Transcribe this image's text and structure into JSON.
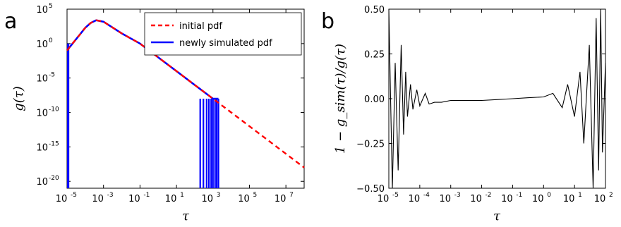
{
  "chart_data": [
    {
      "panel": "a",
      "type": "line",
      "xlabel": "τ",
      "ylabel": "g(τ)",
      "xscale": "log",
      "yscale": "log",
      "xlim": [
        1e-05,
        100000000.0
      ],
      "ylim": [
        1e-21,
        100000.0
      ],
      "x_ticks": [
        "-5",
        "-3",
        "-1",
        "1",
        "3",
        "5",
        "7"
      ],
      "y_ticks": [
        "5",
        "0",
        "-5",
        "-10",
        "-15",
        "-20"
      ],
      "tick_base": "10",
      "legend_position": "top-right",
      "series": [
        {
          "name": "initial pdf",
          "color": "#ff0000",
          "style": "dashed",
          "x": [
            1e-05,
            2e-05,
            5e-05,
            0.0001,
            0.0002,
            0.0004,
            0.001,
            0.01,
            0.1,
            1,
            10,
            100,
            1000.0,
            10000.0,
            100000.0,
            1000000.0,
            10000000.0,
            100000000.0
          ],
          "y": [
            0.1,
            1,
            20,
            200,
            1000,
            2500,
            1500,
            30,
            1,
            0.01,
            0.0001,
            1e-06,
            1e-08,
            1e-10,
            1e-12,
            1e-14,
            1e-16,
            1e-18
          ]
        },
        {
          "name": "newly simulated pdf",
          "color": "#0000ff",
          "style": "solid",
          "x": [
            1e-05,
            2e-05,
            5e-05,
            0.0001,
            0.0002,
            0.0004,
            0.001,
            0.01,
            0.1,
            1,
            10,
            100,
            1000.0,
            2000.0
          ],
          "y": [
            0.1,
            1,
            20,
            200,
            1000,
            2500,
            1500,
            30,
            1,
            0.01,
            0.0001,
            1e-06,
            1e-08,
            1e-08
          ]
        }
      ]
    },
    {
      "panel": "b",
      "type": "line",
      "xlabel": "τ",
      "ylabel": "1 − g_sim(τ)/g(τ)",
      "xscale": "log",
      "xlim": [
        1e-05,
        100
      ],
      "ylim": [
        -0.5,
        0.5
      ],
      "x_ticks": [
        "-5",
        "-4",
        "-3",
        "-2",
        "-1",
        "0",
        "1",
        "2"
      ],
      "tick_base": "10",
      "y_ticks": [
        "0.50",
        "0.25",
        "0.00",
        "−0.25",
        "−0.50"
      ],
      "series": [
        {
          "color": "#000000",
          "style": "solid",
          "x": [
            1e-05,
            1.3e-05,
            1.6e-05,
            2e-05,
            2.5e-05,
            3e-05,
            3.5e-05,
            4e-05,
            5e-05,
            6e-05,
            8e-05,
            0.0001,
            0.00015,
            0.0002,
            0.0003,
            0.0005,
            0.001,
            0.002,
            0.005,
            0.01,
            0.03,
            0.1,
            0.3,
            1,
            2,
            4,
            6,
            10,
            15,
            20,
            30,
            40,
            50,
            60,
            70,
            80,
            100
          ],
          "y": [
            0.5,
            -0.5,
            0.2,
            -0.4,
            0.3,
            -0.2,
            0.15,
            -0.1,
            0.08,
            -0.06,
            0.05,
            -0.04,
            0.03,
            -0.03,
            -0.02,
            -0.02,
            -0.01,
            -0.01,
            -0.01,
            -0.01,
            -0.005,
            0.0,
            0.005,
            0.01,
            0.03,
            -0.05,
            0.08,
            -0.1,
            0.15,
            -0.25,
            0.3,
            -0.5,
            0.45,
            -0.4,
            0.5,
            -0.3,
            0.2
          ]
        }
      ]
    }
  ],
  "panel_letters": [
    "a",
    "b"
  ]
}
